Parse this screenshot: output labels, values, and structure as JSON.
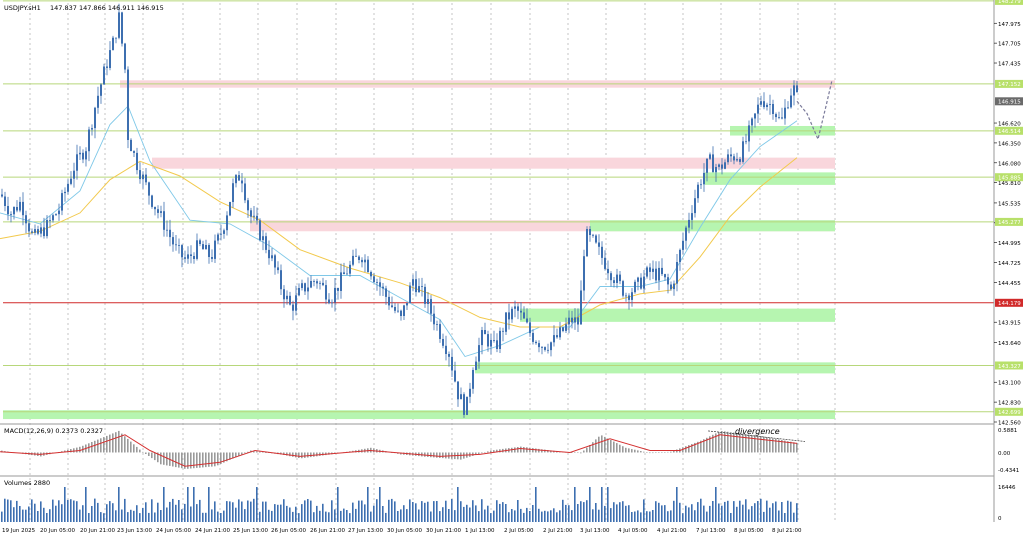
{
  "colors": {
    "background": "#ffffff",
    "grid": "#a0a0a0",
    "level_line": "#b7d77a",
    "red_line": "#d12a2a",
    "green_zone": "#b6f5b0",
    "pink_zone": "#f9d6dc",
    "candle": "#3d6fb0",
    "ma_fast": "#7fc8e8",
    "ma_slow": "#f2c94c",
    "macd_hist": "#9a9a9a",
    "macd_signal": "#d43030",
    "volume": "#3d6fb0",
    "label_bg_green": "#b8e06a",
    "label_bg_red": "#d12a2a",
    "price_label_bg": "#6a6a6a",
    "forecast_line": "#7a7a9a"
  },
  "header": {
    "symbol_info": "USDJPY.sH1",
    "ohlc": "147.837 147.866 146.911 146.915"
  },
  "chart_data": [
    {
      "type": "candlestick",
      "symbol": "USDJPY",
      "timeframe": "H1",
      "ylim": [
        142.56,
        148.25
      ],
      "y_ticks": [
        "147.975",
        "147.705",
        "147.435",
        "146.620",
        "146.350",
        "146.080",
        "145.810",
        "145.535",
        "145.265",
        "144.995",
        "144.725",
        "144.455",
        "143.915",
        "143.640",
        "143.100",
        "142.830",
        "142.560"
      ],
      "level_labels": [
        {
          "text": "148.279",
          "value": 148.279,
          "style": "green"
        },
        {
          "text": "147.152",
          "value": 147.152,
          "style": "green"
        },
        {
          "text": "146.915",
          "value": 146.915,
          "style": "price"
        },
        {
          "text": "146.514",
          "value": 146.514,
          "style": "green"
        },
        {
          "text": "145.885",
          "value": 145.885,
          "style": "green"
        },
        {
          "text": "145.277",
          "value": 145.277,
          "style": "green"
        },
        {
          "text": "144.179",
          "value": 144.179,
          "style": "red"
        },
        {
          "text": "143.327",
          "value": 143.327,
          "style": "green"
        },
        {
          "text": "142.699",
          "value": 142.699,
          "style": "green"
        }
      ],
      "x_labels": [
        "19 Jun 2025",
        "20 Jun 05:00",
        "20 Jun 21:00",
        "23 Jun 13:00",
        "24 Jun 05:00",
        "24 Jun 21:00",
        "25 Jun 13:00",
        "26 Jun 05:00",
        "26 Jun 21:00",
        "27 Jun 13:00",
        "30 Jun 05:00",
        "30 Jun 21:00",
        "1 Jul 13:00",
        "2 Jul 05:00",
        "2 Jul 21:00",
        "3 Jul 13:00",
        "4 Jul 05:00",
        "4 Jul 21:00",
        "7 Jul 13:00",
        "8 Jul 05:00",
        "8 Jul 21:00"
      ],
      "price_path": [
        [
          0,
          145.65
        ],
        [
          10,
          145.4
        ],
        [
          20,
          145.55
        ],
        [
          32,
          145.05
        ],
        [
          45,
          145.2
        ],
        [
          58,
          145.45
        ],
        [
          72,
          146.0
        ],
        [
          85,
          146.3
        ],
        [
          95,
          146.9
        ],
        [
          105,
          147.4
        ],
        [
          113,
          147.75
        ],
        [
          118,
          148.05
        ],
        [
          124,
          147.35
        ],
        [
          127,
          146.45
        ],
        [
          135,
          146.1
        ],
        [
          150,
          145.6
        ],
        [
          165,
          145.2
        ],
        [
          175,
          144.9
        ],
        [
          185,
          144.75
        ],
        [
          198,
          144.95
        ],
        [
          210,
          144.8
        ],
        [
          222,
          145.2
        ],
        [
          232,
          145.75
        ],
        [
          240,
          145.95
        ],
        [
          248,
          145.4
        ],
        [
          258,
          145.15
        ],
        [
          270,
          144.8
        ],
        [
          280,
          144.4
        ],
        [
          290,
          144.1
        ],
        [
          300,
          144.35
        ],
        [
          315,
          144.5
        ],
        [
          330,
          144.25
        ],
        [
          345,
          144.6
        ],
        [
          360,
          144.85
        ],
        [
          375,
          144.5
        ],
        [
          390,
          144.15
        ],
        [
          400,
          143.95
        ],
        [
          412,
          144.5
        ],
        [
          425,
          144.2
        ],
        [
          435,
          143.9
        ],
        [
          448,
          143.5
        ],
        [
          457,
          142.95
        ],
        [
          465,
          142.7
        ],
        [
          472,
          143.35
        ],
        [
          482,
          143.75
        ],
        [
          494,
          143.55
        ],
        [
          505,
          143.95
        ],
        [
          515,
          144.1
        ],
        [
          522,
          143.95
        ],
        [
          530,
          143.75
        ],
        [
          542,
          143.6
        ],
        [
          552,
          143.65
        ],
        [
          562,
          143.8
        ],
        [
          570,
          143.95
        ],
        [
          578,
          143.9
        ],
        [
          584,
          145.1
        ],
        [
          592,
          145.0
        ],
        [
          603,
          144.75
        ],
        [
          612,
          144.55
        ],
        [
          625,
          144.3
        ],
        [
          636,
          144.4
        ],
        [
          648,
          144.6
        ],
        [
          660,
          144.55
        ],
        [
          670,
          144.35
        ],
        [
          678,
          144.8
        ],
        [
          688,
          145.35
        ],
        [
          698,
          145.8
        ],
        [
          708,
          146.1
        ],
        [
          718,
          146.0
        ],
        [
          728,
          146.15
        ],
        [
          740,
          146.2
        ],
        [
          750,
          146.55
        ],
        [
          760,
          146.95
        ],
        [
          772,
          146.85
        ],
        [
          780,
          146.6
        ],
        [
          786,
          146.9
        ],
        [
          792,
          147.12
        ],
        [
          797,
          146.915
        ]
      ],
      "ma_fast_path": [
        [
          0,
          145.4
        ],
        [
          40,
          145.25
        ],
        [
          80,
          145.7
        ],
        [
          110,
          146.6
        ],
        [
          128,
          146.85
        ],
        [
          150,
          146.1
        ],
        [
          190,
          145.3
        ],
        [
          230,
          145.25
        ],
        [
          270,
          144.95
        ],
        [
          310,
          144.55
        ],
        [
          360,
          144.55
        ],
        [
          400,
          144.25
        ],
        [
          440,
          143.95
        ],
        [
          465,
          143.45
        ],
        [
          500,
          143.6
        ],
        [
          540,
          143.85
        ],
        [
          570,
          143.85
        ],
        [
          600,
          144.4
        ],
        [
          640,
          144.4
        ],
        [
          670,
          144.5
        ],
        [
          700,
          145.2
        ],
        [
          730,
          145.85
        ],
        [
          760,
          146.3
        ],
        [
          797,
          146.65
        ]
      ],
      "ma_slow_path": [
        [
          0,
          145.05
        ],
        [
          40,
          145.15
        ],
        [
          80,
          145.4
        ],
        [
          110,
          145.85
        ],
        [
          140,
          146.1
        ],
        [
          180,
          145.9
        ],
        [
          220,
          145.55
        ],
        [
          260,
          145.3
        ],
        [
          300,
          144.9
        ],
        [
          350,
          144.65
        ],
        [
          400,
          144.45
        ],
        [
          440,
          144.25
        ],
        [
          480,
          143.98
        ],
        [
          520,
          143.85
        ],
        [
          560,
          143.85
        ],
        [
          600,
          144.15
        ],
        [
          640,
          144.3
        ],
        [
          670,
          144.35
        ],
        [
          700,
          144.8
        ],
        [
          730,
          145.35
        ],
        [
          760,
          145.75
        ],
        [
          797,
          146.15
        ]
      ],
      "forecast_path": [
        [
          797,
          146.915
        ],
        [
          807,
          146.75
        ],
        [
          818,
          146.4
        ],
        [
          826,
          146.85
        ],
        [
          832,
          147.2
        ]
      ],
      "pink_zones": [
        [
          147.1,
          147.2
        ],
        [
          146.0,
          146.15
        ],
        [
          145.15,
          145.3
        ]
      ],
      "green_zones": [
        [
          146.45,
          146.58
        ],
        [
          145.78,
          145.95
        ],
        [
          145.15,
          145.3
        ],
        [
          143.92,
          144.1
        ],
        [
          143.22,
          143.37
        ],
        [
          142.6,
          142.72
        ]
      ]
    },
    {
      "type": "macd",
      "title": "MACD(12,26,9) 0.2373 0.2327",
      "y_ticks": [
        "0.5881",
        "0.00",
        "-0.4341"
      ],
      "ylim": [
        -0.55,
        0.65
      ],
      "annotation": "divergence",
      "histogram_shape": [
        [
          0,
          0.05
        ],
        [
          40,
          -0.1
        ],
        [
          80,
          0.15
        ],
        [
          118,
          0.55
        ],
        [
          140,
          0.05
        ],
        [
          160,
          -0.3
        ],
        [
          185,
          -0.42
        ],
        [
          215,
          -0.35
        ],
        [
          250,
          0.05
        ],
        [
          280,
          -0.05
        ],
        [
          300,
          -0.15
        ],
        [
          330,
          -0.05
        ],
        [
          370,
          0.12
        ],
        [
          400,
          -0.05
        ],
        [
          430,
          -0.12
        ],
        [
          460,
          -0.18
        ],
        [
          490,
          0.05
        ],
        [
          520,
          0.15
        ],
        [
          560,
          0.02
        ],
        [
          580,
          -0.02
        ],
        [
          600,
          0.45
        ],
        [
          625,
          0.12
        ],
        [
          650,
          -0.02
        ],
        [
          670,
          0.02
        ],
        [
          700,
          0.3
        ],
        [
          720,
          0.55
        ],
        [
          760,
          0.42
        ],
        [
          797,
          0.24
        ]
      ],
      "signal_shape": [
        [
          0,
          0.02
        ],
        [
          40,
          -0.05
        ],
        [
          80,
          0.05
        ],
        [
          125,
          0.45
        ],
        [
          150,
          0.05
        ],
        [
          185,
          -0.35
        ],
        [
          220,
          -0.25
        ],
        [
          255,
          0.05
        ],
        [
          300,
          -0.1
        ],
        [
          370,
          0.05
        ],
        [
          440,
          -0.1
        ],
        [
          480,
          -0.05
        ],
        [
          520,
          0.1
        ],
        [
          570,
          0.0
        ],
        [
          610,
          0.35
        ],
        [
          650,
          0.05
        ],
        [
          680,
          0.05
        ],
        [
          720,
          0.45
        ],
        [
          797,
          0.23
        ]
      ]
    },
    {
      "type": "bar",
      "title": "Volumes 2880",
      "y_ticks": [
        "16446",
        "0"
      ],
      "ylim": [
        0,
        16446
      ]
    }
  ]
}
